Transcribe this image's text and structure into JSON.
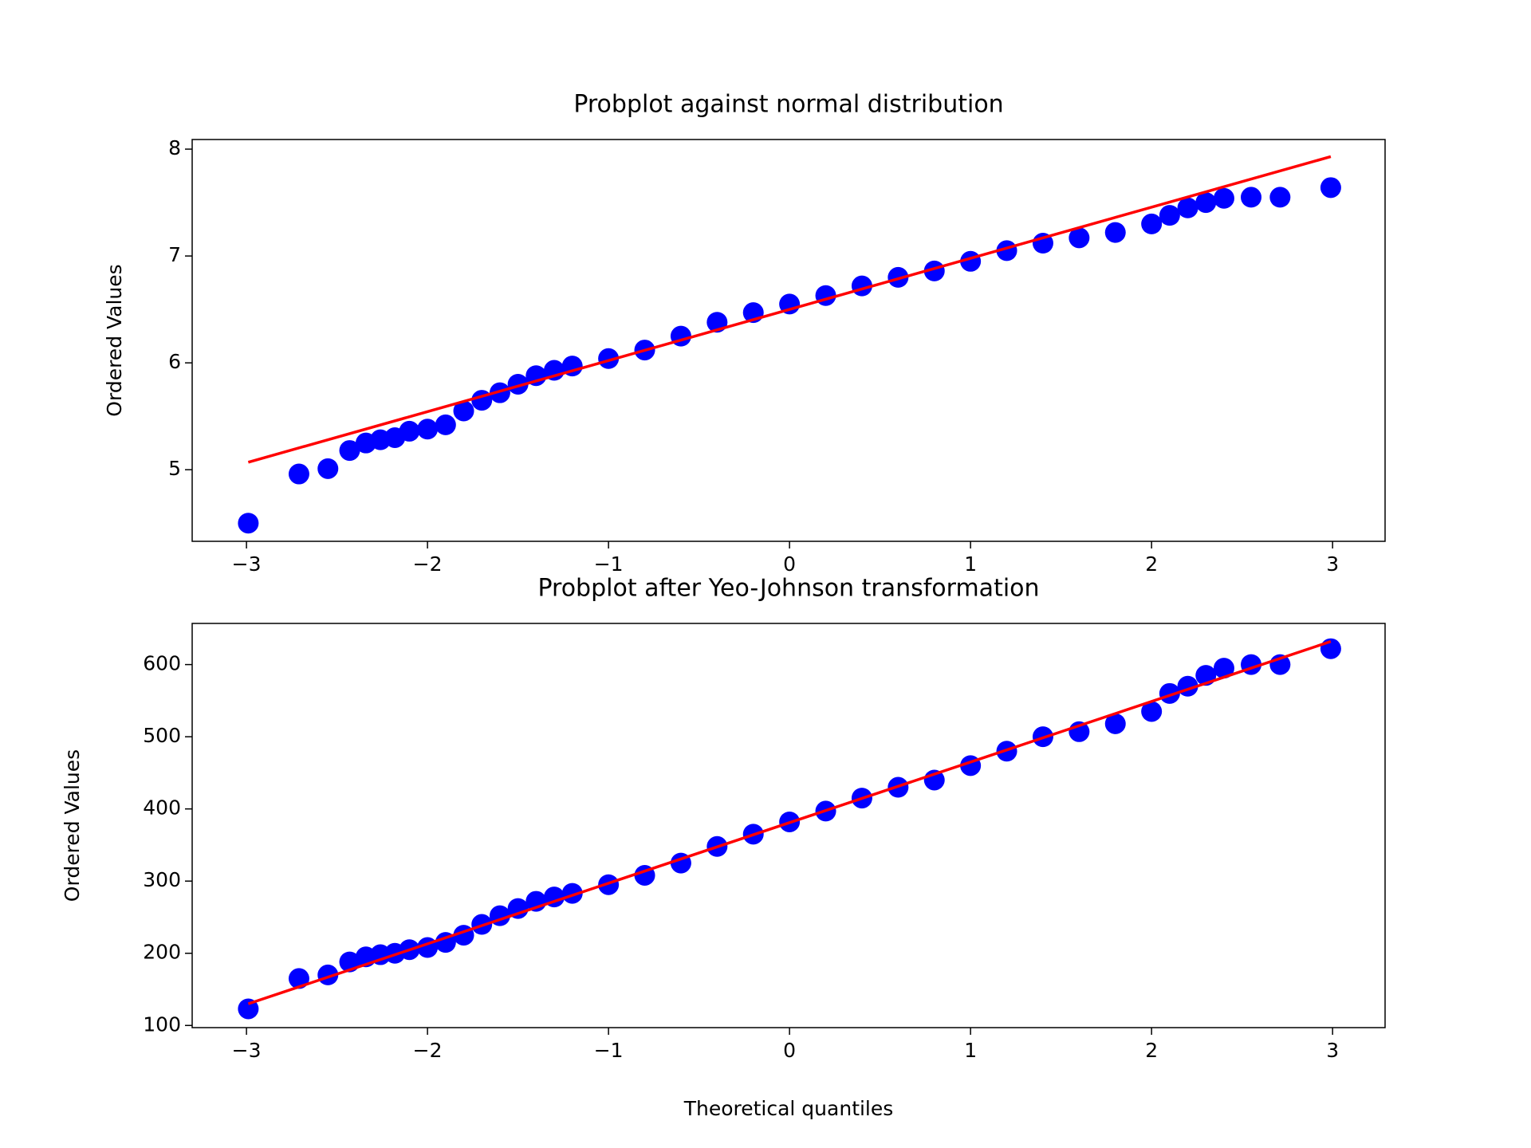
{
  "chart_data": [
    {
      "type": "scatter",
      "title": "Probplot against normal distribution",
      "ylabel": "Ordered Values",
      "xlim": [
        -3.3,
        3.29
      ],
      "ylim": [
        4.33,
        8.09
      ],
      "xticks": [
        {
          "value": -3,
          "label": "−3"
        },
        {
          "value": -2,
          "label": "−2"
        },
        {
          "value": -1,
          "label": "−1"
        },
        0,
        1,
        2,
        3
      ],
      "yticks": [
        5,
        6,
        7,
        8
      ],
      "series": [
        {
          "color": "#0000ff",
          "x": [
            -2.99,
            -2.71,
            -2.55,
            -2.43,
            -2.34,
            -2.26,
            -2.18,
            -2.1,
            -2.0,
            -1.9,
            -1.8,
            -1.7,
            -1.6,
            -1.5,
            -1.4,
            -1.3,
            -1.2,
            -1.0,
            -0.8,
            -0.6,
            -0.4,
            -0.2,
            0,
            0.2,
            0.4,
            0.6,
            0.8,
            1.0,
            1.2,
            1.4,
            1.6,
            1.8,
            2.0,
            2.1,
            2.2,
            2.3,
            2.4,
            2.55,
            2.71,
            2.99
          ],
          "values": [
            4.5,
            4.96,
            5.01,
            5.18,
            5.25,
            5.28,
            5.3,
            5.36,
            5.38,
            5.42,
            5.55,
            5.65,
            5.72,
            5.8,
            5.88,
            5.93,
            5.97,
            6.04,
            6.12,
            6.25,
            6.38,
            6.47,
            6.55,
            6.63,
            6.72,
            6.8,
            6.86,
            6.95,
            7.05,
            7.12,
            7.17,
            7.22,
            7.3,
            7.38,
            7.45,
            7.5,
            7.54,
            7.55,
            7.55,
            7.64
          ]
        }
      ],
      "fit": {
        "color": "#ff0000",
        "x": [
          -2.99,
          2.99
        ],
        "values": [
          5.07,
          7.93
        ]
      }
    },
    {
      "type": "scatter",
      "title": "Probplot after Yeo-Johnson transformation",
      "xlabel": "Theoretical quantiles",
      "ylabel": "Ordered Values",
      "xlim": [
        -3.3,
        3.29
      ],
      "ylim": [
        97,
        657
      ],
      "xticks": [
        {
          "value": -3,
          "label": "−3"
        },
        {
          "value": -2,
          "label": "−2"
        },
        {
          "value": -1,
          "label": "−1"
        },
        0,
        1,
        2,
        3
      ],
      "yticks": [
        100,
        200,
        300,
        400,
        500,
        600
      ],
      "series": [
        {
          "color": "#0000ff",
          "x": [
            -2.99,
            -2.71,
            -2.55,
            -2.43,
            -2.34,
            -2.26,
            -2.18,
            -2.1,
            -2.0,
            -1.9,
            -1.8,
            -1.7,
            -1.6,
            -1.5,
            -1.4,
            -1.3,
            -1.2,
            -1.0,
            -0.8,
            -0.6,
            -0.4,
            -0.2,
            0,
            0.2,
            0.4,
            0.6,
            0.8,
            1.0,
            1.2,
            1.4,
            1.6,
            1.8,
            2.0,
            2.1,
            2.2,
            2.3,
            2.4,
            2.55,
            2.71,
            2.99
          ],
          "values": [
            123,
            165,
            170,
            188,
            195,
            198,
            200,
            205,
            208,
            215,
            225,
            240,
            252,
            262,
            272,
            278,
            283,
            295,
            308,
            325,
            348,
            365,
            382,
            397,
            415,
            430,
            440,
            460,
            480,
            500,
            507,
            518,
            535,
            560,
            570,
            585,
            595,
            600,
            600,
            622
          ]
        }
      ],
      "fit": {
        "color": "#ff0000",
        "x": [
          -2.99,
          2.99
        ],
        "values": [
          130,
          632
        ]
      }
    }
  ]
}
